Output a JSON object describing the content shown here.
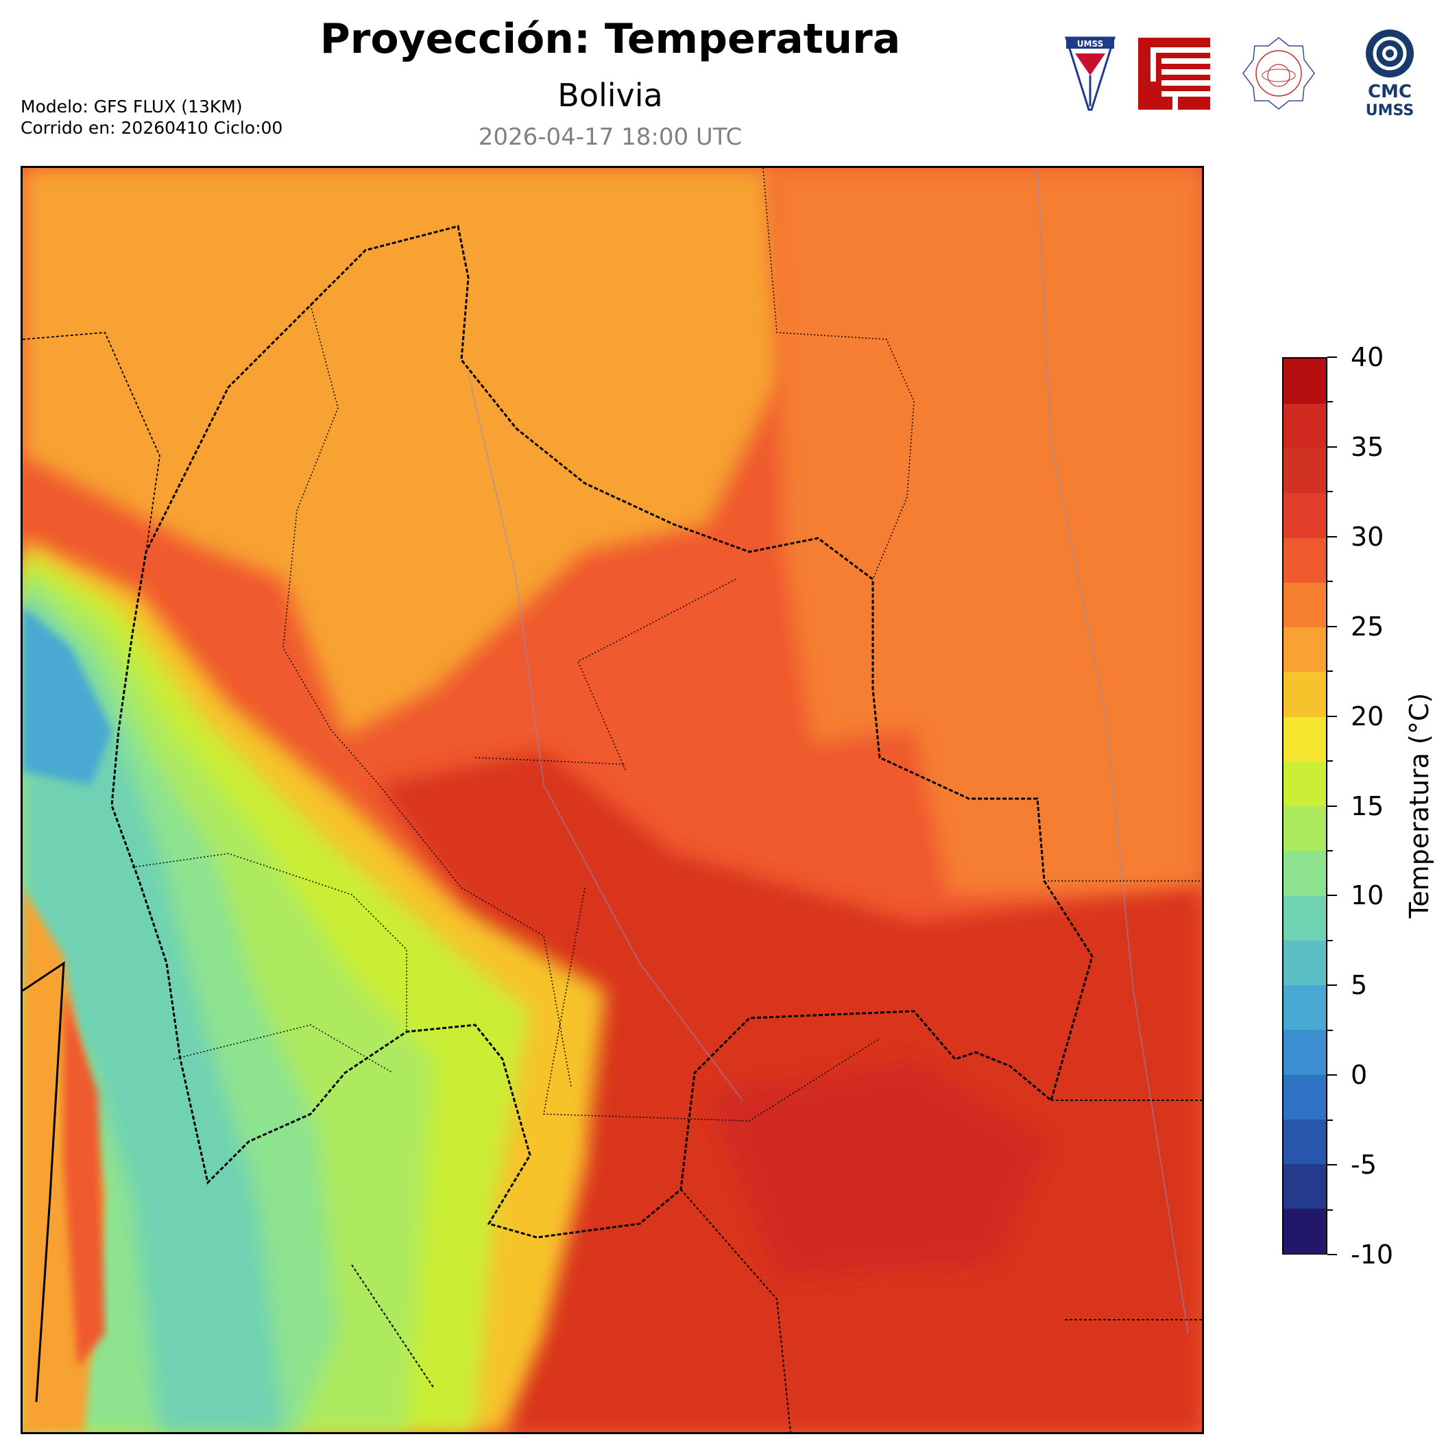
{
  "header": {
    "title": "Proyección: Temperatura",
    "subtitle": "Bolivia",
    "datetime": "2026-04-17 18:00 UTC",
    "model_line": "Modelo: GFS FLUX (13KM)",
    "run_line": "Corrido en: 20260410 Ciclo:00"
  },
  "logos": {
    "umss_text": "UMSS",
    "cmc_text": "CMC",
    "cmc_sub": "UMSS"
  },
  "colorbar": {
    "title": "Temperatura (°C)",
    "min": -10,
    "max": 40,
    "step": 2.5,
    "tick_labels": [
      "40",
      "35",
      "30",
      "25",
      "20",
      "15",
      "10",
      "5",
      "0",
      "-5",
      "-10"
    ],
    "colors": [
      "#21186b",
      "#243a8a",
      "#2757ad",
      "#2e73c4",
      "#3b8ed0",
      "#48a9d2",
      "#5bbfc6",
      "#6fd2b2",
      "#8ee38f",
      "#aeea5f",
      "#cbee36",
      "#f4e62f",
      "#f6c32c",
      "#f7a233",
      "#f57e31",
      "#ef5a2e",
      "#e13f2a",
      "#d23224",
      "#d12a20",
      "#b50f0f"
    ]
  },
  "map": {
    "region": "Bolivia"
  }
}
